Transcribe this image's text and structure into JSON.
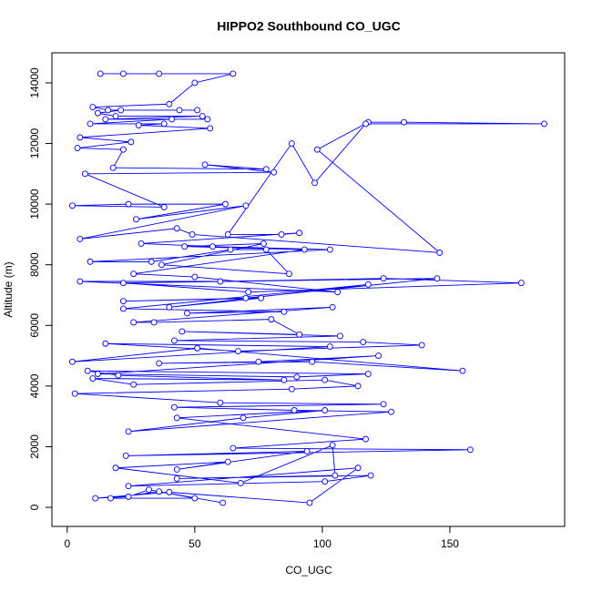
{
  "chart_data": {
    "type": "line-points",
    "title": "HIPPO2 Southbound CO_UGC",
    "x_label": "CO_UGC",
    "y_label": "Altitude (m)",
    "color": "#0000ff",
    "xlim": [
      -6,
      195
    ],
    "ylim": [
      -630,
      14990
    ],
    "xticks": [
      0,
      50,
      100,
      150
    ],
    "yticks": [
      0,
      2000,
      4000,
      6000,
      8000,
      10000,
      12000,
      14000
    ],
    "x": [
      13,
      22,
      36,
      65,
      50,
      40,
      10,
      16,
      51,
      44,
      21,
      12,
      19,
      53,
      15,
      55,
      41,
      9,
      38,
      28,
      56,
      5,
      25,
      4,
      22,
      18,
      78,
      54,
      81,
      7,
      38,
      2,
      24,
      62,
      27,
      70,
      5,
      43,
      49,
      146,
      98,
      118,
      132,
      187,
      117,
      97,
      88,
      63,
      84,
      91,
      29,
      57,
      103,
      9,
      33,
      64,
      78,
      87,
      37,
      77,
      46,
      93,
      26,
      50,
      106,
      5,
      60,
      124,
      178,
      71,
      22,
      145,
      70,
      22,
      76,
      40,
      118,
      22,
      85,
      47,
      104,
      26,
      34,
      80,
      91,
      45,
      107,
      42,
      116,
      139,
      67,
      15,
      103,
      2,
      51,
      155,
      96,
      36,
      75,
      122,
      12,
      90,
      118,
      8,
      20,
      85,
      10,
      26,
      101,
      114,
      88,
      3,
      60,
      124,
      42,
      89,
      127,
      24,
      69,
      101,
      43,
      117,
      65,
      158,
      23,
      94,
      43,
      63,
      19,
      68,
      104,
      105,
      43,
      119,
      101,
      24,
      114,
      95,
      40,
      11,
      24,
      32,
      50,
      17,
      36,
      61
    ],
    "y": [
      14300,
      14300,
      14300,
      14300,
      14000,
      13300,
      13200,
      13100,
      13100,
      13100,
      13100,
      13000,
      12900,
      12900,
      12800,
      12800,
      12800,
      12650,
      12650,
      12600,
      12500,
      12200,
      12050,
      11850,
      11800,
      11200,
      11150,
      11300,
      11050,
      11000,
      9900,
      9950,
      10000,
      10000,
      9500,
      9950,
      8850,
      9200,
      9000,
      8400,
      11800,
      12700,
      12700,
      12650,
      12650,
      10700,
      12000,
      9000,
      9000,
      9050,
      8700,
      8600,
      8500,
      8100,
      8100,
      8500,
      8500,
      7700,
      8000,
      8700,
      8600,
      8500,
      7700,
      7600,
      7100,
      7450,
      7450,
      7550,
      7400,
      7100,
      7400,
      7550,
      6900,
      6800,
      6900,
      6600,
      7350,
      6550,
      6450,
      6400,
      6600,
      6100,
      6100,
      6200,
      5700,
      5800,
      5650,
      5500,
      5450,
      5350,
      5150,
      5400,
      5300,
      4800,
      5250,
      4500,
      4800,
      4750,
      4800,
      5000,
      4400,
      4300,
      4400,
      4500,
      4350,
      4200,
      4250,
      4050,
      4200,
      4000,
      3900,
      3750,
      3450,
      3400,
      3300,
      3200,
      3150,
      2500,
      2950,
      3200,
      2950,
      2250,
      1950,
      1900,
      1700,
      1850,
      1250,
      1500,
      1300,
      800,
      2050,
      1050,
      950,
      1050,
      850,
      700,
      1300,
      150,
      500,
      300,
      350,
      580,
      300,
      300,
      520,
      150
    ]
  }
}
